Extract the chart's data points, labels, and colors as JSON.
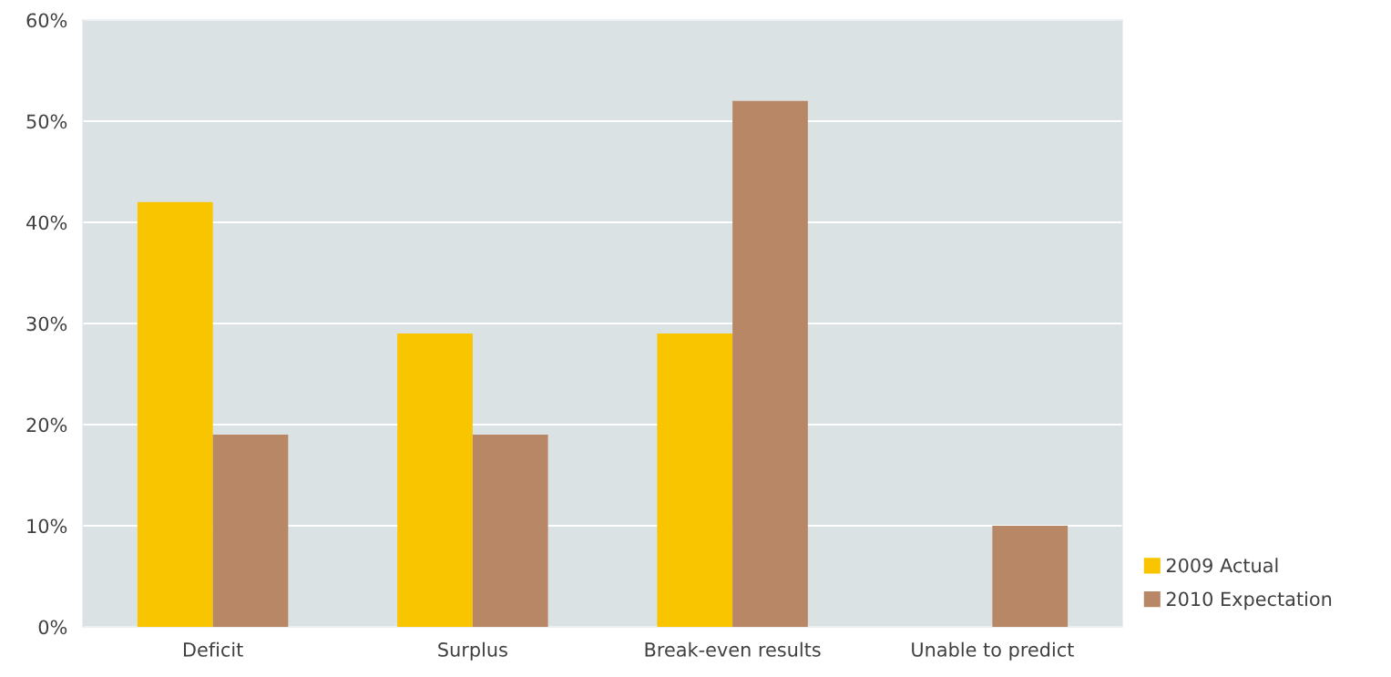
{
  "chart_data": {
    "type": "bar",
    "categories": [
      "Deficit",
      "Surplus",
      "Break-even results",
      "Unable to predict"
    ],
    "series": [
      {
        "name": "2009 Actual",
        "color": "#f9c400",
        "values": [
          42,
          29,
          29,
          0
        ]
      },
      {
        "name": "2010 Expectation",
        "color": "#b88766",
        "values": [
          19,
          19,
          52,
          10
        ]
      }
    ],
    "ylim": [
      0,
      60
    ],
    "yticks": [
      {
        "value": 0,
        "label": "0%"
      },
      {
        "value": 10,
        "label": "10%"
      },
      {
        "value": 20,
        "label": "20%"
      },
      {
        "value": 30,
        "label": "30%"
      },
      {
        "value": 40,
        "label": "40%"
      },
      {
        "value": 50,
        "label": "50%"
      },
      {
        "value": 60,
        "label": "60%"
      }
    ],
    "grid": "y",
    "legend": "bottom right"
  }
}
